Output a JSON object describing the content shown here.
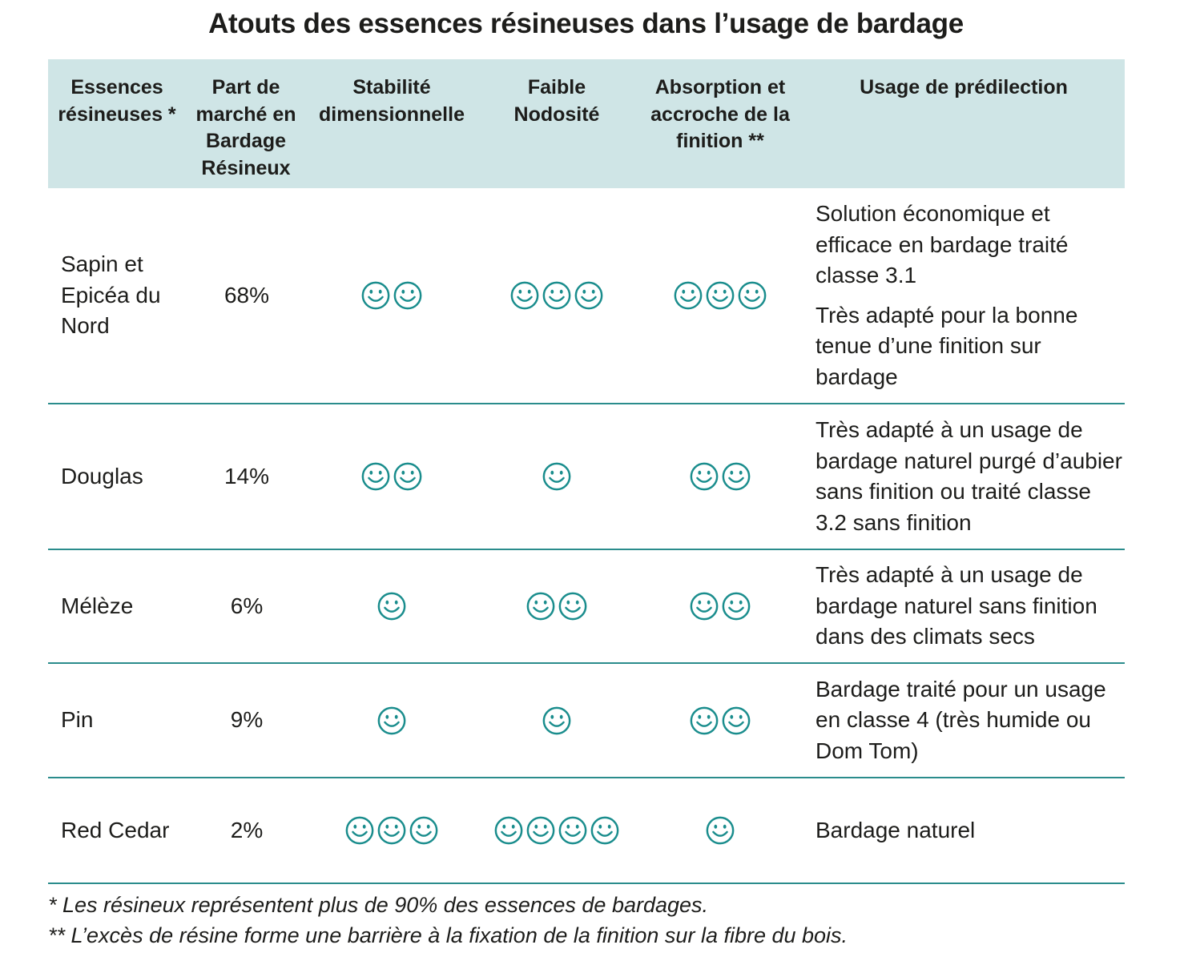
{
  "title": "Atouts des essences résineuses dans l’usage de bardage",
  "colors": {
    "header_bg": "#cfe5e6",
    "rule": "#2a8c8c",
    "smiley": "#1a8d8d"
  },
  "headers": {
    "essences": "Essences résineuses *",
    "part": "Part de marché en Bardage Résineux",
    "stabilite": "Stabilité dimensionnelle",
    "nodosite": "Faible Nodosité",
    "absorption": "Absorption et accroche de la finition **",
    "usage": "Usage de prédilection"
  },
  "rows": [
    {
      "name": "Sapin et Epicéa du Nord",
      "part": "68%",
      "stabilite": 2,
      "nodosite": 3,
      "absorption": 3,
      "usage": [
        "Solution économique et efficace en bardage traité classe 3.1",
        "Très adapté pour la bonne tenue d’une finition sur bardage"
      ]
    },
    {
      "name": "Douglas",
      "part": "14%",
      "stabilite": 2,
      "nodosite": 1,
      "absorption": 2,
      "usage": [
        "Très adapté à un usage de bardage naturel purgé d’aubier sans finition ou traité classe 3.2 sans finition"
      ]
    },
    {
      "name": "Mélèze",
      "part": "6%",
      "stabilite": 1,
      "nodosite": 2,
      "absorption": 2,
      "usage": [
        "Très adapté à un usage de bardage naturel sans finition dans des climats secs"
      ]
    },
    {
      "name": "Pin",
      "part": "9%",
      "stabilite": 1,
      "nodosite": 1,
      "absorption": 2,
      "usage": [
        "Bardage traité pour un usage en classe 4 (très humide ou Dom Tom)"
      ]
    },
    {
      "name": "Red Cedar",
      "part": "2%",
      "stabilite": 3,
      "nodosite": 4,
      "absorption": 1,
      "usage": [
        "Bardage naturel"
      ]
    }
  ],
  "footnotes": [
    "* Les résineux représentent plus de 90% des essences de bardages.",
    "** L’excès de résine forme une barrière à la fixation de la finition sur la fibre du bois."
  ]
}
